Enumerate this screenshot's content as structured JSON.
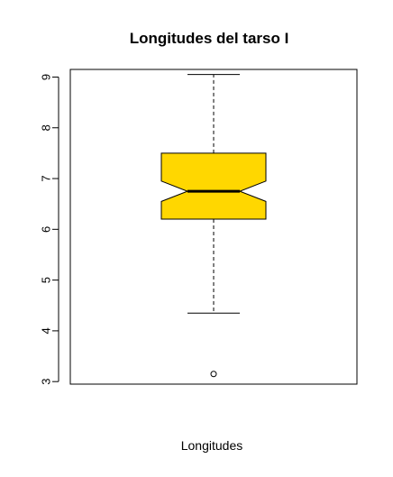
{
  "chart_data": {
    "type": "boxplot",
    "title": "Longitudes del tarso I",
    "xlabel": "Longitudes",
    "ylabel": "",
    "ylim": [
      2.95,
      9.15
    ],
    "yticks": [
      3,
      4,
      5,
      6,
      7,
      8,
      9
    ],
    "notched": true,
    "grid": false,
    "box_color": "#FFD700",
    "stats": {
      "whisker_low": 4.35,
      "q1": 6.2,
      "median": 6.75,
      "q3": 7.5,
      "whisker_high": 9.05,
      "notch_low": 6.55,
      "notch_high": 6.95
    },
    "outliers": [
      3.15
    ]
  }
}
